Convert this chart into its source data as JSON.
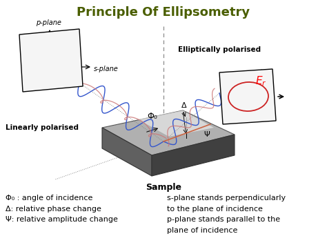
{
  "title": "Principle Of Ellipsometry",
  "title_color": "#4a5e00",
  "title_fontsize": 13,
  "bg_color": "#ffffff",
  "left_label": "Linearly polarised",
  "right_label": "Elliptically polarised",
  "sample_label": "Sample",
  "bottom_left_text": "Φ₀ : angle of incidence\nΔ: relative phase change\nΨ: relative amplitude change",
  "bottom_right_text": "s-plane stands perpendicularly\nto the plane of incidence\np-plane stands parallel to the\nplane of incidence",
  "phi0_label": "Φ₀",
  "psi_label": "Ψ",
  "delta_label": "Δ",
  "p_plane_label": "p-plane",
  "s_plane_label": "s-plane",
  "figsize": [
    4.74,
    3.55
  ],
  "dpi": 100
}
